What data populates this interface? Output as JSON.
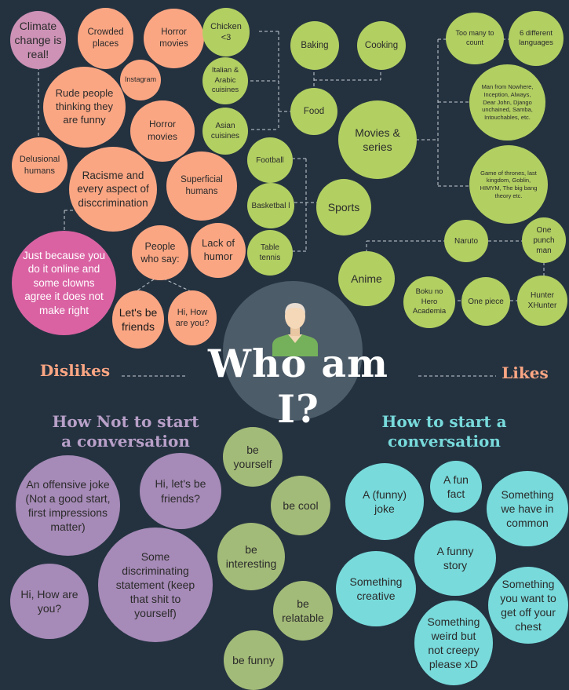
{
  "title": "Who am I?",
  "dislikes_label": "Dislikes",
  "likes_label": "Likes",
  "avatar_icon": "person-avatar-icon",
  "colors": {
    "background": "#243240",
    "dislikes": "#fba683",
    "likes": "#b2cf62",
    "how_not": "#a68ab7",
    "how_to": "#78dadb",
    "accent_pink": "#da62a3"
  },
  "dislikes": {
    "climate": "Climate change is real!",
    "crowded": "Crowded places",
    "horror1": "Horror movies",
    "instagram": "Instagram",
    "rude": "Rude people thinking they are funny",
    "horror2": "Horror movies",
    "delusional": "Delusional humans",
    "racisme": "Racisme and every aspect of discсrimination",
    "superficial": "Superficial humans",
    "people_who_say": "People who say:",
    "lack_humor": "Lack of humor",
    "just_because": "Just because you do it online and some clowns agree it does not make right",
    "lets_be_friends": "Let's be friends",
    "hi_how": "Hi, How are you?"
  },
  "likes": {
    "chicken": "Chicken <3",
    "italian": "Italian & Arabic cuisines",
    "asian": "Asian cuisines",
    "baking": "Baking",
    "cooking": "Cooking",
    "food": "Food",
    "football": "Football",
    "basketball": "Basketbal l",
    "table_tennis": "Table tennis",
    "sports": "Sports",
    "movies_series": "Movies & series",
    "too_many": "Too many to count",
    "languages": "6 different languages",
    "movie_list": "Man from Nowhere, Inception, Always, Dear John, Django unchained, Samba, Intouchables, etc.",
    "series_list": "Game of thrones, last kingdom, Goblin, HIMYM, The big bang theory etc.",
    "naruto": "Naruto",
    "one_punch": "One punch man",
    "anime": "Anime",
    "boku": "Boku no Hero Academia",
    "one_piece": "One piece",
    "hunter": "Hunter XHunter"
  },
  "how_not": {
    "heading": "How Not to start a conversation",
    "offensive": "An offensive joke (Not a good start, first impressions matter)",
    "hi_lets": "Hi, let's be friends?",
    "some_disc": "Some discriminating statement (keep that shit to yourself)",
    "hi_how": "Hi, How are you?"
  },
  "tips": {
    "be_yourself": "be yourself",
    "be_cool": "be cool",
    "be_interesting": "be interesting",
    "be_relatable": "be relatable",
    "be_funny": "be funny"
  },
  "how_to": {
    "heading": "How to start a conversation",
    "funny_joke": "A (funny) joke",
    "fun_fact": "A fun fact",
    "in_common": "Something we have in common",
    "funny_story": "A funny story",
    "creative": "Something creative",
    "get_off_chest": "Something you want to get off your chest",
    "weird": "Something weird but not creepy please xD"
  }
}
